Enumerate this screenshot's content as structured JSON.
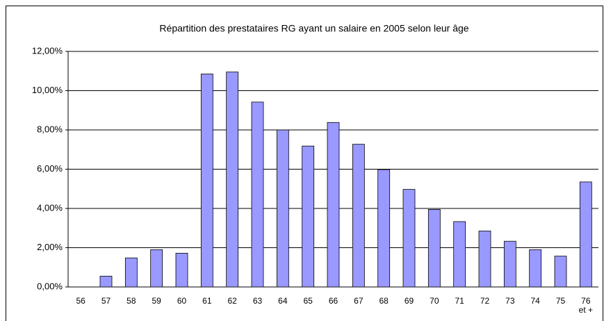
{
  "chart_data": {
    "type": "bar",
    "title": "Répartition des prestataires RG ayant un salaire en 2005 selon leur âge",
    "categories": [
      "56",
      "57",
      "58",
      "59",
      "60",
      "61",
      "62",
      "63",
      "64",
      "65",
      "66",
      "67",
      "68",
      "69",
      "70",
      "71",
      "72",
      "73",
      "74",
      "75",
      "76\net +"
    ],
    "values": [
      0,
      0.55,
      1.48,
      1.9,
      1.72,
      10.85,
      10.95,
      9.42,
      8.0,
      7.18,
      8.38,
      7.27,
      5.98,
      4.97,
      3.95,
      3.33,
      2.85,
      2.33,
      1.9,
      1.57,
      5.35
    ],
    "color": "#9999ff",
    "ylim": [
      0,
      12
    ],
    "yticks": [
      {
        "value": 0,
        "label": "0,00%"
      },
      {
        "value": 2,
        "label": "2,00%"
      },
      {
        "value": 4,
        "label": "4,00%"
      },
      {
        "value": 6,
        "label": "6,00%"
      },
      {
        "value": 8,
        "label": "8,00%"
      },
      {
        "value": 10,
        "label": "10,00%"
      },
      {
        "value": 12,
        "label": "12,00%"
      }
    ],
    "grid": true
  }
}
